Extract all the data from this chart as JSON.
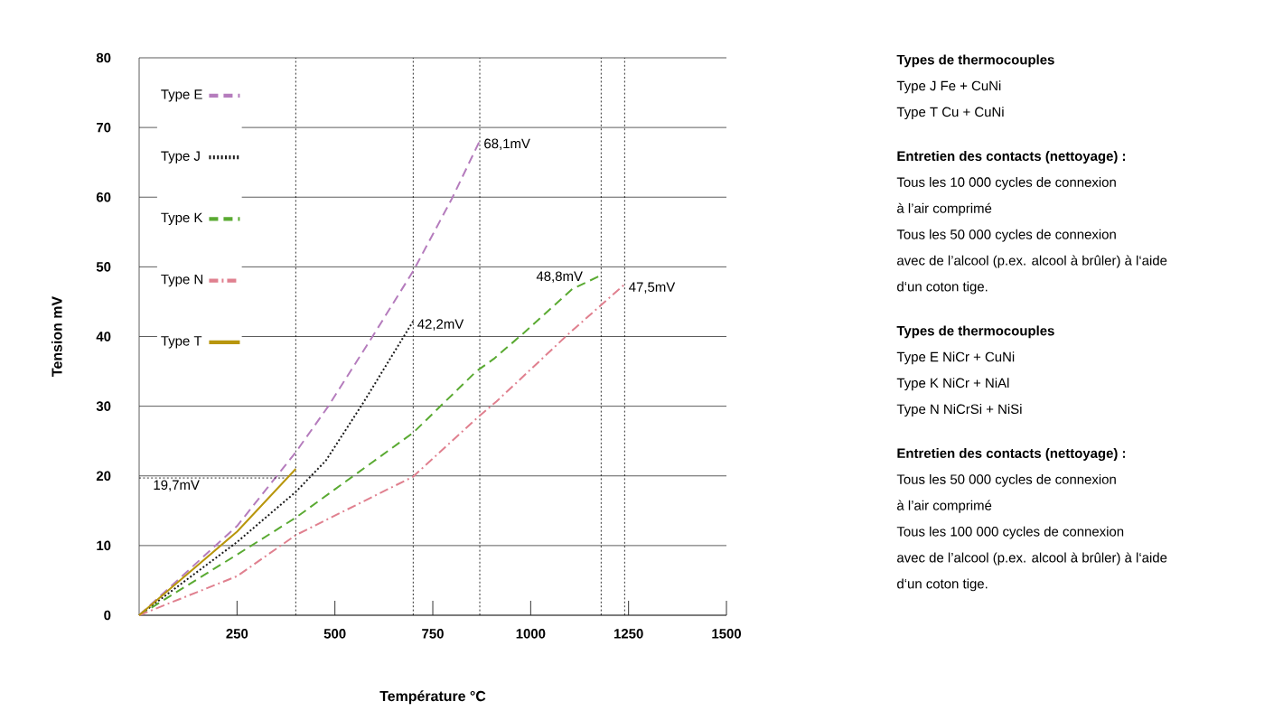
{
  "chart_data": {
    "type": "line",
    "xlabel": "Température °C",
    "ylabel": "Tension mV",
    "xlim": [
      0,
      1500
    ],
    "xticks": [
      250,
      500,
      750,
      1000,
      1250,
      1500
    ],
    "ylim": [
      0,
      80
    ],
    "yticks": [
      0,
      10,
      20,
      30,
      40,
      50,
      60,
      70,
      80
    ],
    "grid": "y",
    "legend": "top left",
    "series": [
      {
        "name": "Type E",
        "color": "#b57cbd",
        "line_style": "dashed",
        "x": [
          0,
          250,
          400,
          482,
          596,
          700,
          798,
          870
        ],
        "values": [
          0,
          12.8,
          23.4,
          29.9,
          40.0,
          49.4,
          59.7,
          68.1
        ]
      },
      {
        "name": "Type J",
        "color": "#1a1a1a",
        "line_style": "dotted",
        "x": [
          0,
          250,
          400,
          477,
          569,
          700
        ],
        "values": [
          0,
          10.5,
          17.7,
          22.2,
          30.2,
          42.2
        ]
      },
      {
        "name": "Type K",
        "color": "#5aaa32",
        "line_style": "dashed",
        "x": [
          0,
          250,
          400,
          486,
          700,
          861,
          906,
          982,
          1106,
          1180
        ],
        "values": [
          0,
          8.7,
          14.0,
          17.5,
          26.2,
          35.0,
          36.8,
          40.5,
          46.8,
          48.8
        ]
      },
      {
        "name": "Type N",
        "color": "#e0808f",
        "line_style": "dashdot",
        "x": [
          0,
          250,
          400,
          700,
          861,
          913,
          1099,
          1240
        ],
        "values": [
          0,
          5.6,
          11.5,
          19.9,
          28.2,
          30.7,
          40.5,
          47.5
        ]
      },
      {
        "name": "Type T",
        "color": "#b8960c",
        "line_style": "solid",
        "x": [
          0,
          250,
          400
        ],
        "values": [
          0,
          12.0,
          21.0
        ]
      }
    ],
    "ref_lines": [
      {
        "axis": "x",
        "value": 400,
        "line_style": "dotted"
      },
      {
        "axis": "x",
        "value": 700,
        "line_style": "dotted"
      },
      {
        "axis": "x",
        "value": 870,
        "line_style": "dotted"
      },
      {
        "axis": "x",
        "value": 1180,
        "line_style": "dotted"
      },
      {
        "axis": "x",
        "value": 1240,
        "line_style": "dotted"
      },
      {
        "axis": "y",
        "value": 19.7,
        "line_style": "dotted",
        "label": "19,7mV"
      }
    ],
    "annotations": [
      {
        "text": "68,1mV",
        "x": 870,
        "y": 68.1
      },
      {
        "text": "42,2mV",
        "x": 700,
        "y": 42.2
      },
      {
        "text": "48,8mV",
        "x": 1180,
        "y": 48.8
      },
      {
        "text": "47,5mV",
        "x": 1240,
        "y": 47.5
      },
      "**Types de thermocouples**",
      "Type J   Fe + CuNi",
      "Type T   Cu + CuNi",
      "**Entretien des contacts (nettoyage) :**",
      "Tous les 10 000 cycles de connexion",
      "à l’air comprimé",
      "Tous les 50 000 cycles de connexion",
      "avec de l’alcool (p.ex. alcool à brûler) à l‘aide",
      "d‘un coton tige.",
      "**Types de thermocouples**",
      "Type E   NiCr + CuNi",
      "Type K   NiCr + NiAl",
      "Type N   NiCrSi + NiSi",
      "**Entretien des contacts (nettoyage) :**",
      "Tous les 50 000 cycles de connexion",
      "à l’air comprimé",
      "Tous les 100 000 cycles de connexion",
      "avec de l’alcool (p.ex. alcool à brûler) à l‘aide",
      "d‘un coton tige."
    ]
  }
}
